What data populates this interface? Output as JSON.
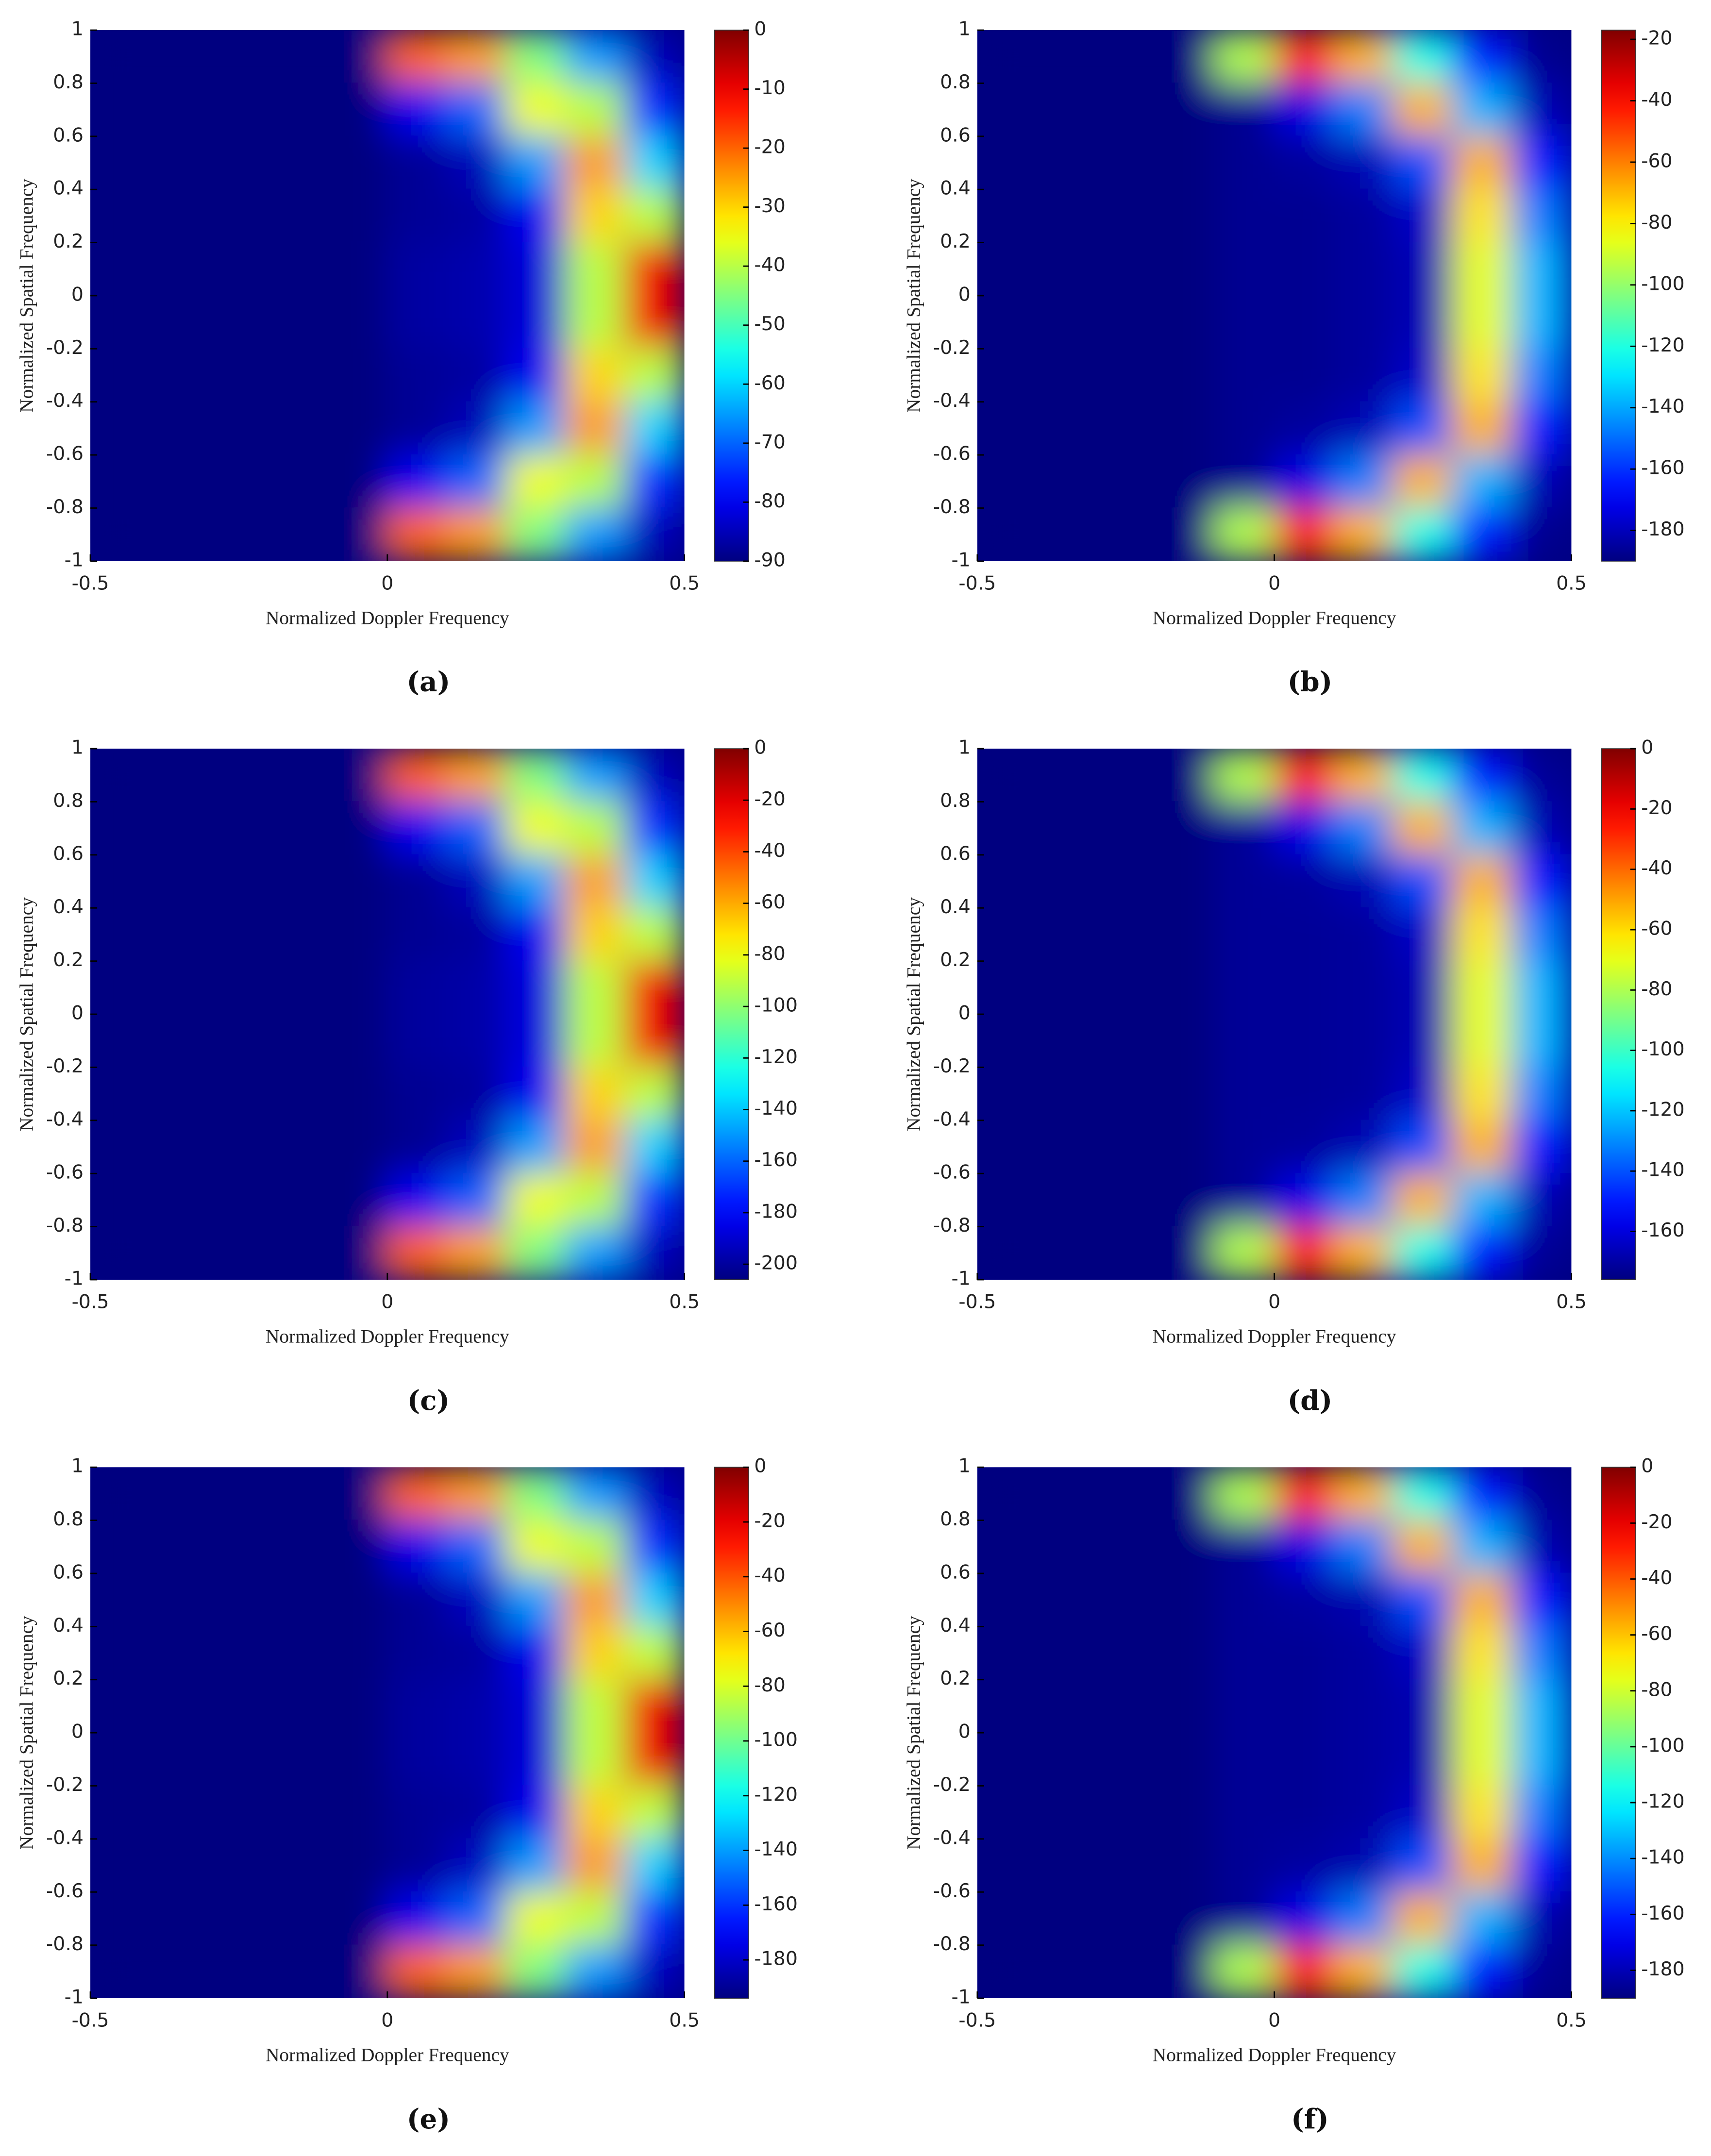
{
  "chart_data": [
    {
      "type": "heatmap",
      "label": "(a)",
      "xlabel": "Normalized Doppler Frequency",
      "ylabel": "Normalized Spatial Frequency",
      "colormap": "jet",
      "xlim": [
        -0.5,
        0.5
      ],
      "xticks": [
        -0.5,
        0,
        0.5
      ],
      "ylim": [
        -1,
        1
      ],
      "yticks": [
        1,
        0.8,
        0.6,
        0.4,
        0.2,
        0,
        -0.2,
        -0.4,
        -0.6,
        -0.8,
        -1
      ],
      "clim": [
        -90,
        0
      ],
      "cticks": [
        0,
        -10,
        -20,
        -30,
        -40,
        -50,
        -60,
        -70,
        -80,
        -90
      ],
      "x": [
        -0.45,
        -0.35,
        -0.25,
        -0.15,
        -0.05,
        0.05,
        0.15,
        0.25,
        0.35,
        0.45
      ],
      "y": [
        0.9,
        0.7,
        0.5,
        0.3,
        0.1,
        -0.1,
        -0.3,
        -0.5,
        -0.7,
        -0.9
      ],
      "z": [
        [
          -90,
          -90,
          -90,
          -90,
          -90,
          -20,
          -25,
          -45,
          -65,
          -85
        ],
        [
          -90,
          -90,
          -90,
          -90,
          -90,
          -80,
          -70,
          -35,
          -40,
          -75
        ],
        [
          -90,
          -90,
          -90,
          -90,
          -90,
          -88,
          -85,
          -65,
          -25,
          -60
        ],
        [
          -90,
          -90,
          -90,
          -90,
          -90,
          -88,
          -87,
          -80,
          -30,
          -40
        ],
        [
          -90,
          -90,
          -90,
          -90,
          -90,
          -87,
          -86,
          -82,
          -40,
          -10
        ],
        [
          -90,
          -90,
          -90,
          -90,
          -90,
          -87,
          -86,
          -82,
          -40,
          -10
        ],
        [
          -90,
          -90,
          -90,
          -90,
          -90,
          -88,
          -87,
          -80,
          -30,
          -40
        ],
        [
          -90,
          -90,
          -90,
          -90,
          -90,
          -88,
          -85,
          -65,
          -25,
          -60
        ],
        [
          -90,
          -90,
          -90,
          -90,
          -90,
          -80,
          -70,
          -35,
          -40,
          -75
        ],
        [
          -90,
          -90,
          -90,
          -90,
          -90,
          -20,
          -25,
          -45,
          -65,
          -85
        ]
      ]
    },
    {
      "type": "heatmap",
      "label": "(b)",
      "xlabel": "Normalized Doppler Frequency",
      "ylabel": "Normalized Spatial Frequency",
      "colormap": "jet",
      "xlim": [
        -0.5,
        0.5
      ],
      "xticks": [
        -0.5,
        0,
        0.5
      ],
      "ylim": [
        -1,
        1
      ],
      "yticks": [
        1,
        0.8,
        0.6,
        0.4,
        0.2,
        0,
        -0.2,
        -0.4,
        -0.6,
        -0.8,
        -1
      ],
      "clim": [
        -190,
        -17
      ],
      "cticks": [
        -20,
        -40,
        -60,
        -80,
        -100,
        -120,
        -140,
        -160,
        -180
      ],
      "x": [
        -0.45,
        -0.35,
        -0.25,
        -0.15,
        -0.05,
        0.05,
        0.15,
        0.25,
        0.35,
        0.45
      ],
      "y": [
        0.9,
        0.7,
        0.5,
        0.3,
        0.1,
        -0.1,
        -0.3,
        -0.5,
        -0.7,
        -0.9
      ],
      "z": [
        [
          -190,
          -190,
          -190,
          -190,
          -95,
          -43,
          -69,
          -121,
          -164,
          -187
        ],
        [
          -190,
          -190,
          -190,
          -190,
          -187,
          -173,
          -147,
          -69,
          -138,
          -181
        ],
        [
          -190,
          -190,
          -190,
          -190,
          -187,
          -185,
          -181,
          -155,
          -69,
          -164
        ],
        [
          -190,
          -190,
          -190,
          -190,
          -187,
          -187,
          -185,
          -178,
          -78,
          -147
        ],
        [
          -190,
          -190,
          -190,
          -190,
          -187,
          -187,
          -185,
          -181,
          -86,
          -138
        ],
        [
          -190,
          -190,
          -190,
          -190,
          -187,
          -187,
          -185,
          -181,
          -86,
          -138
        ],
        [
          -190,
          -190,
          -190,
          -190,
          -187,
          -187,
          -185,
          -178,
          -78,
          -147
        ],
        [
          -190,
          -190,
          -190,
          -190,
          -187,
          -185,
          -181,
          -155,
          -69,
          -164
        ],
        [
          -190,
          -190,
          -190,
          -190,
          -187,
          -173,
          -147,
          -69,
          -138,
          -181
        ],
        [
          -190,
          -190,
          -190,
          -190,
          -95,
          -43,
          -69,
          -121,
          -164,
          -187
        ]
      ]
    },
    {
      "type": "heatmap",
      "label": "(c)",
      "xlabel": "Normalized Doppler Frequency",
      "ylabel": "Normalized Spatial Frequency",
      "colormap": "jet",
      "xlim": [
        -0.5,
        0.5
      ],
      "xticks": [
        -0.5,
        0,
        0.5
      ],
      "ylim": [
        -1,
        1
      ],
      "yticks": [
        1,
        0.8,
        0.6,
        0.4,
        0.2,
        0,
        -0.2,
        -0.4,
        -0.6,
        -0.8,
        -1
      ],
      "clim": [
        -206,
        0
      ],
      "cticks": [
        0,
        -20,
        -40,
        -60,
        -80,
        -100,
        -120,
        -140,
        -160,
        -180,
        -200
      ],
      "x": [
        -0.45,
        -0.35,
        -0.25,
        -0.15,
        -0.05,
        0.05,
        0.15,
        0.25,
        0.35,
        0.45
      ],
      "y": [
        0.9,
        0.7,
        0.5,
        0.3,
        0.1,
        -0.1,
        -0.3,
        -0.5,
        -0.7,
        -0.9
      ],
      "z": [
        [
          -206,
          -206,
          -206,
          -206,
          -206,
          -45,
          -58,
          -103,
          -148,
          -194
        ],
        [
          -206,
          -206,
          -206,
          -206,
          -206,
          -183,
          -161,
          -80,
          -91,
          -171
        ],
        [
          -206,
          -206,
          -206,
          -206,
          -206,
          -202,
          -194,
          -148,
          -58,
          -138
        ],
        [
          -206,
          -206,
          -206,
          -206,
          -206,
          -202,
          -200,
          -183,
          -68,
          -91
        ],
        [
          -206,
          -206,
          -206,
          -206,
          -206,
          -200,
          -198,
          -187,
          -91,
          -23
        ],
        [
          -206,
          -206,
          -206,
          -206,
          -206,
          -200,
          -198,
          -187,
          -91,
          -23
        ],
        [
          -206,
          -206,
          -206,
          -206,
          -206,
          -202,
          -200,
          -183,
          -68,
          -91
        ],
        [
          -206,
          -206,
          -206,
          -206,
          -206,
          -202,
          -194,
          -148,
          -58,
          -138
        ],
        [
          -206,
          -206,
          -206,
          -206,
          -206,
          -183,
          -161,
          -80,
          -91,
          -171
        ],
        [
          -206,
          -206,
          -206,
          -206,
          -206,
          -45,
          -58,
          -103,
          -148,
          -194
        ]
      ]
    },
    {
      "type": "heatmap",
      "label": "(d)",
      "xlabel": "Normalized Doppler Frequency",
      "ylabel": "Normalized Spatial Frequency",
      "colormap": "jet",
      "xlim": [
        -0.5,
        0.5
      ],
      "xticks": [
        -0.5,
        0,
        0.5
      ],
      "ylim": [
        -1,
        1
      ],
      "yticks": [
        1,
        0.8,
        0.6,
        0.4,
        0.2,
        0,
        -0.2,
        -0.4,
        -0.6,
        -0.8,
        -1
      ],
      "clim": [
        -176,
        0
      ],
      "cticks": [
        0,
        -20,
        -40,
        -60,
        -80,
        -100,
        -120,
        -140,
        -160
      ],
      "x": [
        -0.45,
        -0.35,
        -0.25,
        -0.15,
        -0.05,
        0.05,
        0.15,
        0.25,
        0.35,
        0.45
      ],
      "y": [
        0.9,
        0.7,
        0.5,
        0.3,
        0.1,
        -0.1,
        -0.3,
        -0.5,
        -0.7,
        -0.9
      ],
      "z": [
        [
          -176,
          -176,
          -176,
          -176,
          -79,
          -26,
          -53,
          -106,
          -150,
          -172
        ],
        [
          -176,
          -176,
          -176,
          -176,
          -172,
          -158,
          -132,
          -53,
          -123,
          -167
        ],
        [
          -176,
          -176,
          -176,
          -176,
          -172,
          -171,
          -167,
          -141,
          -53,
          -150
        ],
        [
          -176,
          -176,
          -176,
          -176,
          -172,
          -172,
          -171,
          -164,
          -62,
          -132
        ],
        [
          -176,
          -176,
          -176,
          -176,
          -172,
          -172,
          -171,
          -167,
          -70,
          -123
        ],
        [
          -176,
          -176,
          -176,
          -176,
          -172,
          -172,
          -171,
          -167,
          -70,
          -123
        ],
        [
          -176,
          -176,
          -176,
          -176,
          -172,
          -172,
          -171,
          -164,
          -62,
          -132
        ],
        [
          -176,
          -176,
          -176,
          -176,
          -172,
          -171,
          -167,
          -141,
          -53,
          -150
        ],
        [
          -176,
          -176,
          -176,
          -176,
          -172,
          -158,
          -132,
          -53,
          -123,
          -167
        ],
        [
          -176,
          -176,
          -176,
          -176,
          -79,
          -26,
          -53,
          -106,
          -150,
          -172
        ]
      ]
    },
    {
      "type": "heatmap",
      "label": "(e)",
      "xlabel": "Normalized Doppler Frequency",
      "ylabel": "Normalized Spatial Frequency",
      "colormap": "jet",
      "xlim": [
        -0.5,
        0.5
      ],
      "xticks": [
        -0.5,
        0,
        0.5
      ],
      "ylim": [
        -1,
        1
      ],
      "yticks": [
        1,
        0.8,
        0.6,
        0.4,
        0.2,
        0,
        -0.2,
        -0.4,
        -0.6,
        -0.8,
        -1
      ],
      "clim": [
        -194,
        0
      ],
      "cticks": [
        0,
        -20,
        -40,
        -60,
        -80,
        -100,
        -120,
        -140,
        -160,
        -180
      ],
      "x": [
        -0.45,
        -0.35,
        -0.25,
        -0.15,
        -0.05,
        0.05,
        0.15,
        0.25,
        0.35,
        0.45
      ],
      "y": [
        0.9,
        0.7,
        0.5,
        0.3,
        0.1,
        -0.1,
        -0.3,
        -0.5,
        -0.7,
        -0.9
      ],
      "z": [
        [
          -194,
          -194,
          -194,
          -194,
          -194,
          -43,
          -54,
          -97,
          -140,
          -182
        ],
        [
          -194,
          -194,
          -194,
          -194,
          -194,
          -173,
          -151,
          -76,
          -85,
          -161
        ],
        [
          -194,
          -194,
          -194,
          -194,
          -194,
          -190,
          -182,
          -140,
          -54,
          -130
        ],
        [
          -194,
          -194,
          -194,
          -194,
          -194,
          -190,
          -188,
          -173,
          -64,
          -85
        ],
        [
          -194,
          -194,
          -194,
          -194,
          -194,
          -188,
          -186,
          -177,
          -85,
          -21
        ],
        [
          -194,
          -194,
          -194,
          -194,
          -194,
          -188,
          -186,
          -177,
          -85,
          -21
        ],
        [
          -194,
          -194,
          -194,
          -194,
          -194,
          -190,
          -188,
          -173,
          -64,
          -85
        ],
        [
          -194,
          -194,
          -194,
          -194,
          -194,
          -190,
          -182,
          -140,
          -54,
          -130
        ],
        [
          -194,
          -194,
          -194,
          -194,
          -194,
          -173,
          -151,
          -76,
          -85,
          -161
        ],
        [
          -194,
          -194,
          -194,
          -194,
          -194,
          -43,
          -54,
          -97,
          -140,
          -182
        ]
      ]
    },
    {
      "type": "heatmap",
      "label": "(f)",
      "xlabel": "Normalized Doppler Frequency",
      "ylabel": "Normalized Spatial Frequency",
      "colormap": "jet",
      "xlim": [
        -0.5,
        0.5
      ],
      "xticks": [
        -0.5,
        0,
        0.5
      ],
      "ylim": [
        -1,
        1
      ],
      "yticks": [
        1,
        0.8,
        0.6,
        0.4,
        0.2,
        0,
        -0.2,
        -0.4,
        -0.6,
        -0.8,
        -1
      ],
      "clim": [
        -190,
        0
      ],
      "cticks": [
        0,
        -20,
        -40,
        -60,
        -80,
        -100,
        -120,
        -140,
        -160,
        -180
      ],
      "x": [
        -0.45,
        -0.35,
        -0.25,
        -0.15,
        -0.05,
        0.05,
        0.15,
        0.25,
        0.35,
        0.45
      ],
      "y": [
        0.9,
        0.7,
        0.5,
        0.3,
        0.1,
        -0.1,
        -0.3,
        -0.5,
        -0.7,
        -0.9
      ],
      "z": [
        [
          -190,
          -190,
          -190,
          -190,
          -86,
          -29,
          -57,
          -114,
          -162,
          -186
        ],
        [
          -190,
          -190,
          -190,
          -190,
          -186,
          -171,
          -143,
          -57,
          -133,
          -181
        ],
        [
          -190,
          -190,
          -190,
          -190,
          -186,
          -184,
          -181,
          -152,
          -57,
          -162
        ],
        [
          -190,
          -190,
          -190,
          -190,
          -186,
          -186,
          -184,
          -177,
          -67,
          -143
        ],
        [
          -190,
          -190,
          -190,
          -190,
          -186,
          -186,
          -184,
          -181,
          -76,
          -133
        ],
        [
          -190,
          -190,
          -190,
          -190,
          -186,
          -186,
          -184,
          -181,
          -76,
          -133
        ],
        [
          -190,
          -190,
          -190,
          -190,
          -186,
          -186,
          -184,
          -177,
          -67,
          -143
        ],
        [
          -190,
          -190,
          -190,
          -190,
          -186,
          -184,
          -181,
          -152,
          -57,
          -162
        ],
        [
          -190,
          -190,
          -190,
          -190,
          -186,
          -171,
          -143,
          -57,
          -133,
          -181
        ],
        [
          -190,
          -190,
          -190,
          -190,
          -86,
          -29,
          -57,
          -114,
          -162,
          -186
        ]
      ]
    }
  ]
}
